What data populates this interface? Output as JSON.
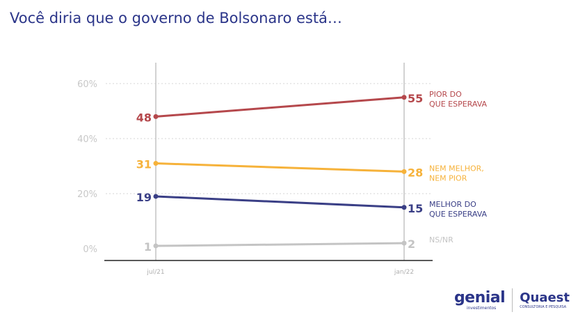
{
  "header": {
    "title": "Você diria que o governo de Bolsonaro está…"
  },
  "chart_data": {
    "type": "line",
    "x": [
      "jul/21",
      "jan/22"
    ],
    "yticks": [
      "0%",
      "20%",
      "40%",
      "60%"
    ],
    "ylim": [
      0,
      60
    ],
    "grid": true,
    "series": [
      {
        "name": "PIOR DO QUE ESPERAVA",
        "label_lines": [
          "PIOR DO",
          "QUE ESPERAVA"
        ],
        "values": [
          48,
          55
        ],
        "color": "#b5484c"
      },
      {
        "name": "NEM MELHOR, NEM PIOR",
        "label_lines": [
          "NEM MELHOR,",
          "NEM PIOR"
        ],
        "values": [
          31,
          28
        ],
        "color": "#f6b23a"
      },
      {
        "name": "MELHOR DO QUE ESPERAVA",
        "label_lines": [
          "MELHOR DO",
          "QUE ESPERAVA"
        ],
        "values": [
          19,
          15
        ],
        "color": "#3a3f86"
      },
      {
        "name": "NS/NR",
        "label_lines": [
          "NS/NR"
        ],
        "values": [
          1,
          2
        ],
        "color": "#c4c4c4"
      }
    ]
  },
  "logos": {
    "genial": {
      "name": "genial",
      "sub": "investimentos"
    },
    "quaest": {
      "name": "Quaest",
      "sub": "CONSULTORIA E PESQUISA"
    }
  }
}
